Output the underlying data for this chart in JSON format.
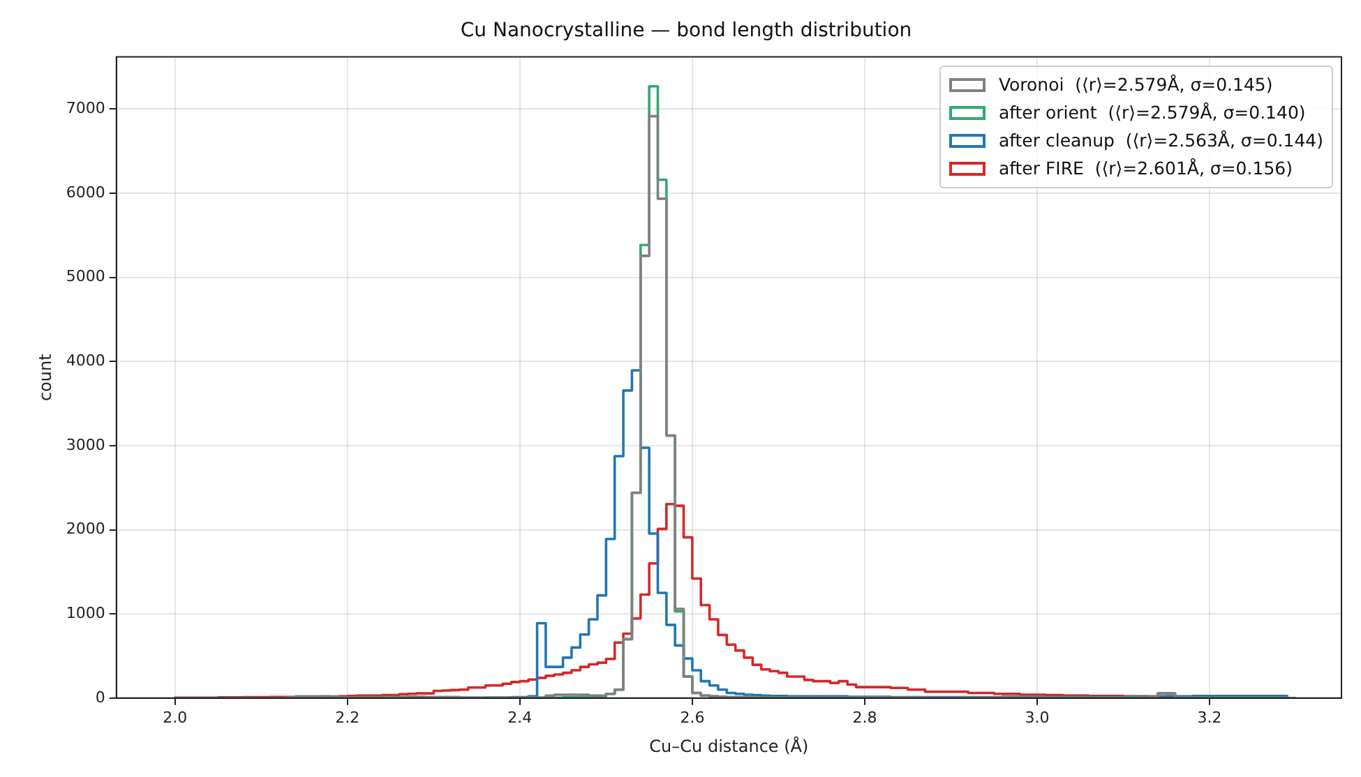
{
  "chart_data": {
    "type": "histogram",
    "title": "Cu Nanocrystalline — bond length distribution",
    "xlabel": "Cu–Cu distance (Å)",
    "ylabel": "count",
    "bins": [
      2.0,
      2.01,
      2.02,
      2.03,
      2.04,
      2.05,
      2.06,
      2.07,
      2.08,
      2.09,
      2.1,
      2.11,
      2.12,
      2.13,
      2.14,
      2.15,
      2.16,
      2.17,
      2.18,
      2.19,
      2.2,
      2.21,
      2.22,
      2.23,
      2.24,
      2.25,
      2.26,
      2.27,
      2.28,
      2.29,
      2.3,
      2.31,
      2.32,
      2.33,
      2.34,
      2.35,
      2.36,
      2.37,
      2.38,
      2.39,
      2.4,
      2.41,
      2.42,
      2.43,
      2.44,
      2.45,
      2.46,
      2.47,
      2.48,
      2.49,
      2.5,
      2.51,
      2.52,
      2.53,
      2.54,
      2.55,
      2.56,
      2.57,
      2.58,
      2.59,
      2.6,
      2.61,
      2.62,
      2.63,
      2.64,
      2.65,
      2.66,
      2.67,
      2.68,
      2.69,
      2.7,
      2.71,
      2.72,
      2.73,
      2.74,
      2.75,
      2.76,
      2.77,
      2.78,
      2.79,
      2.8,
      2.81,
      2.82,
      2.83,
      2.84,
      2.85,
      2.86,
      2.87,
      2.88,
      2.89,
      2.9,
      2.91,
      2.92,
      2.93,
      2.94,
      2.95,
      2.96,
      2.97,
      2.98,
      2.99,
      3.0,
      3.01,
      3.02,
      3.03,
      3.04,
      3.05,
      3.06,
      3.07,
      3.08,
      3.09,
      3.1,
      3.11,
      3.12,
      3.13,
      3.14,
      3.15,
      3.16,
      3.17,
      3.18,
      3.19,
      3.2,
      3.21,
      3.22,
      3.23,
      3.24,
      3.25,
      3.26,
      3.27,
      3.28,
      3.29,
      3.3
    ],
    "series": [
      {
        "name": "Voronoi  (⟨r⟩=2.579Å, σ=0.145)",
        "color": "#808080",
        "values": [
          0,
          0,
          0,
          0,
          0,
          0,
          0,
          0,
          0,
          0,
          0,
          0,
          0,
          5,
          20,
          20,
          20,
          20,
          15,
          5,
          5,
          5,
          5,
          5,
          5,
          10,
          10,
          15,
          15,
          10,
          10,
          10,
          10,
          5,
          5,
          5,
          5,
          5,
          5,
          5,
          5,
          5,
          5,
          30,
          40,
          40,
          40,
          40,
          30,
          20,
          50,
          100,
          700,
          2440,
          5255,
          6915,
          5935,
          3120,
          1060,
          255,
          60,
          30,
          20,
          15,
          10,
          10,
          10,
          5,
          5,
          5,
          5,
          5,
          5,
          5,
          5,
          5,
          5,
          5,
          5,
          5,
          5,
          5,
          5,
          5,
          5,
          5,
          5,
          5,
          5,
          5,
          5,
          5,
          5,
          5,
          5,
          5,
          20,
          20,
          5,
          5,
          5,
          5,
          5,
          5,
          5,
          5,
          5,
          5,
          5,
          5,
          5,
          5,
          5,
          15,
          55,
          55,
          5,
          5,
          5,
          5,
          5,
          5,
          5,
          5,
          5,
          5,
          5,
          5,
          5,
          0
        ]
      },
      {
        "name": "after orient  (⟨r⟩=2.579Å, σ=0.140)",
        "color": "#2eaa72",
        "values": [
          0,
          0,
          0,
          0,
          0,
          0,
          0,
          0,
          0,
          0,
          0,
          0,
          0,
          5,
          5,
          10,
          10,
          10,
          10,
          5,
          5,
          5,
          5,
          5,
          5,
          10,
          10,
          15,
          15,
          10,
          10,
          10,
          10,
          5,
          5,
          5,
          5,
          5,
          5,
          5,
          5,
          5,
          5,
          5,
          5,
          10,
          10,
          15,
          20,
          30,
          50,
          100,
          700,
          2440,
          5385,
          7270,
          6160,
          3120,
          1030,
          255,
          60,
          30,
          20,
          15,
          10,
          10,
          10,
          5,
          5,
          5,
          5,
          5,
          5,
          5,
          5,
          5,
          5,
          5,
          5,
          5,
          5,
          5,
          5,
          5,
          5,
          5,
          5,
          5,
          5,
          5,
          5,
          5,
          5,
          5,
          5,
          5,
          5,
          5,
          5,
          5,
          5,
          5,
          5,
          5,
          5,
          5,
          5,
          5,
          5,
          5,
          5,
          5,
          5,
          15,
          55,
          55,
          5,
          5,
          5,
          5,
          5,
          5,
          5,
          5,
          5,
          5,
          5,
          5,
          5,
          0
        ]
      },
      {
        "name": "after cleanup  (⟨r⟩=2.563Å, σ=0.144)",
        "color": "#1f77b4",
        "values": [
          0,
          0,
          0,
          0,
          0,
          0,
          0,
          0,
          0,
          0,
          0,
          0,
          0,
          0,
          0,
          0,
          0,
          0,
          0,
          0,
          0,
          0,
          0,
          0,
          0,
          0,
          0,
          0,
          0,
          0,
          0,
          0,
          0,
          0,
          0,
          0,
          5,
          5,
          5,
          10,
          10,
          20,
          890,
          370,
          370,
          480,
          600,
          755,
          935,
          1220,
          1890,
          2875,
          3655,
          3895,
          2975,
          1955,
          1250,
          870,
          625,
          470,
          330,
          200,
          150,
          100,
          60,
          50,
          40,
          35,
          30,
          25,
          25,
          20,
          20,
          20,
          20,
          20,
          20,
          20,
          15,
          15,
          15,
          15,
          15,
          10,
          10,
          10,
          10,
          10,
          10,
          10,
          10,
          10,
          10,
          10,
          10,
          10,
          10,
          10,
          10,
          10,
          10,
          10,
          10,
          10,
          10,
          10,
          10,
          10,
          10,
          10,
          10,
          15,
          15,
          15,
          15,
          20,
          20,
          20,
          25,
          25,
          25,
          25,
          25,
          25,
          25,
          25,
          25,
          25,
          25,
          0
        ]
      },
      {
        "name": "after FIRE  (⟨r⟩=2.601Å, σ=0.156)",
        "color": "#d62728",
        "values": [
          5,
          5,
          5,
          5,
          5,
          8,
          8,
          8,
          10,
          10,
          10,
          12,
          12,
          12,
          15,
          15,
          15,
          18,
          18,
          20,
          25,
          30,
          30,
          30,
          35,
          35,
          45,
          50,
          55,
          55,
          85,
          90,
          95,
          100,
          125,
          125,
          150,
          150,
          170,
          190,
          200,
          220,
          240,
          265,
          280,
          300,
          330,
          370,
          400,
          420,
          465,
          660,
          765,
          945,
          1230,
          1600,
          2010,
          2305,
          2285,
          1910,
          1420,
          1105,
          935,
          750,
          635,
          565,
          480,
          395,
          340,
          320,
          300,
          255,
          255,
          215,
          200,
          200,
          180,
          200,
          160,
          130,
          130,
          130,
          130,
          120,
          120,
          100,
          100,
          75,
          75,
          75,
          75,
          75,
          60,
          60,
          60,
          50,
          50,
          50,
          40,
          40,
          40,
          35,
          35,
          30,
          30,
          30,
          25,
          25,
          25,
          25,
          20,
          20,
          20,
          20,
          20,
          20,
          15,
          15,
          15,
          15,
          15,
          15,
          12,
          12,
          10,
          10,
          10,
          10,
          5,
          0
        ]
      }
    ],
    "xlim": [
      1.932,
      3.353
    ],
    "xticks": [
      {
        "value": 2.0,
        "label": "2.0"
      },
      2.2,
      2.4,
      2.6,
      2.8,
      {
        "value": 3.0,
        "label": "3.0"
      },
      3.2
    ],
    "ylim": [
      0,
      7620
    ],
    "yticks": [
      0,
      1000,
      2000,
      3000,
      4000,
      5000,
      6000,
      7000
    ],
    "grid": true,
    "legend": "top right"
  }
}
